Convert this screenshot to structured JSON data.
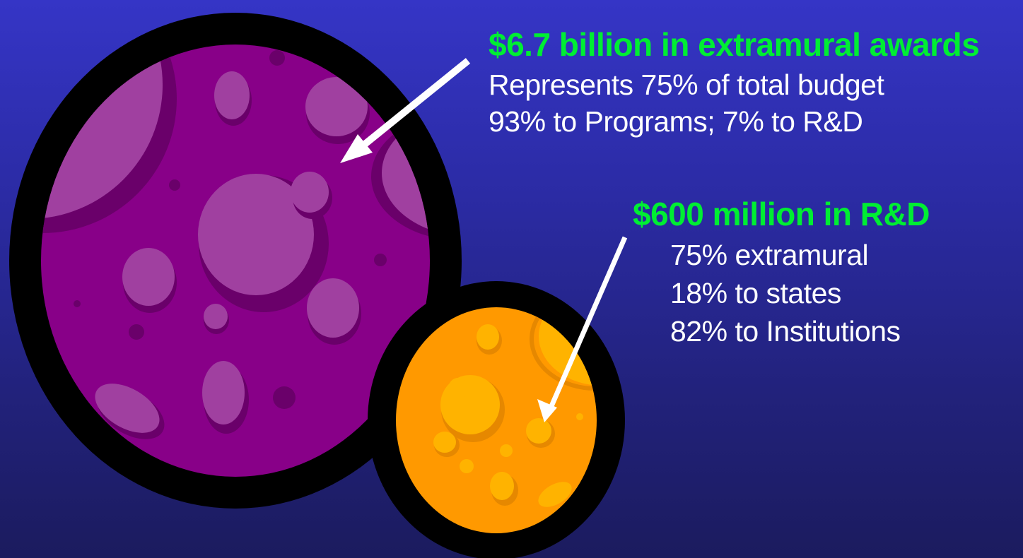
{
  "slide": {
    "awards": {
      "heading": "$6.7 billion in extramural awards",
      "lines": [
        "Represents 75% of total budget",
        "93% to Programs; 7% to R&D"
      ]
    },
    "rd": {
      "heading": "$600 million in R&D",
      "lines": [
        "75% extramural",
        "18% to states",
        "82% to Institutions"
      ]
    }
  },
  "colors": {
    "background_top": "#3535c6",
    "background_bottom": "#1b1b5e",
    "heading": "#00ee33",
    "text": "#ffffff",
    "large_planet": "#880088",
    "large_planet_crater": "#a040a0",
    "small_planet": "#ff9900",
    "small_planet_crater": "#ffb300",
    "outline": "#000000",
    "arrow": "#ffffff"
  }
}
